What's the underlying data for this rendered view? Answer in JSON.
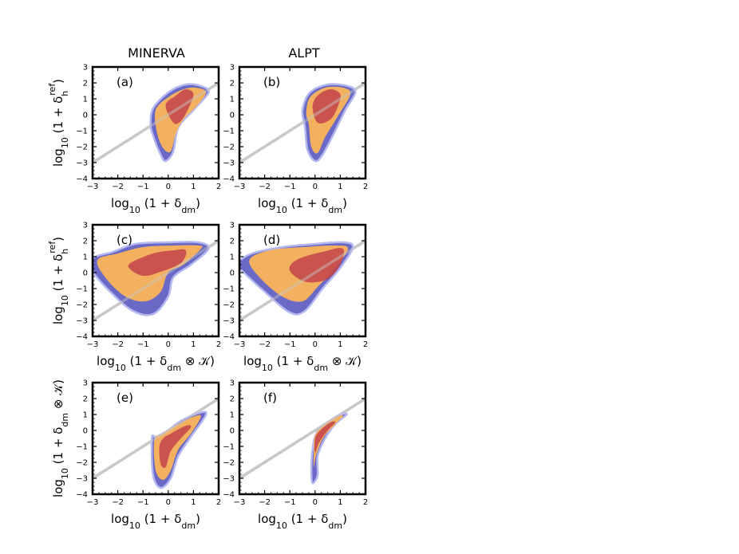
{
  "column_titles": [
    "MINERVA",
    "ALPT"
  ],
  "colors": {
    "outer": "#5a5ac0",
    "outer_edge": "#b4b8f0",
    "mid": "#fbb45a",
    "inner": "#c2444a",
    "diagonal": "#c8c8c8"
  },
  "chart_data": [
    {
      "type": "contour",
      "panel": "(a)",
      "xlabel": "log₁₀ (1 + δdm)",
      "ylabel": "log₁₀ (1 + δhref)",
      "xlim": [
        -3,
        2
      ],
      "ylim": [
        -4,
        3
      ],
      "xticks": [
        "−3",
        "−2",
        "−1",
        "0",
        "1",
        "2"
      ],
      "yticks": [
        "−4",
        "−3",
        "−2",
        "−1",
        "0",
        "1",
        "2",
        "3"
      ],
      "diagonal": true,
      "levels": {
        "outer": [
          [
            -0.6,
            -1.3
          ],
          [
            -0.3,
            -2.5
          ],
          [
            -0.1,
            -2.9
          ],
          [
            0.2,
            -2.3
          ],
          [
            0.4,
            -0.8
          ],
          [
            1.0,
            0.3
          ],
          [
            1.6,
            1.4
          ],
          [
            1.3,
            1.8
          ],
          [
            0.7,
            1.9
          ],
          [
            0.0,
            1.4
          ],
          [
            -0.6,
            0.4
          ],
          [
            -0.7,
            -0.6
          ]
        ],
        "mid": [
          [
            -0.45,
            -1.1
          ],
          [
            -0.2,
            -2.1
          ],
          [
            0.1,
            -2.3
          ],
          [
            0.3,
            -1.2
          ],
          [
            0.6,
            -0.3
          ],
          [
            1.1,
            0.5
          ],
          [
            1.5,
            1.4
          ],
          [
            1.1,
            1.7
          ],
          [
            0.6,
            1.6
          ],
          [
            0.0,
            1.1
          ],
          [
            -0.5,
            0.3
          ]
        ],
        "inner": [
          [
            -0.1,
            0.6
          ],
          [
            0.2,
            -0.5
          ],
          [
            0.5,
            -0.4
          ],
          [
            0.8,
            0.4
          ],
          [
            1.0,
            1.3
          ],
          [
            0.7,
            1.6
          ],
          [
            0.3,
            1.2
          ]
        ]
      }
    },
    {
      "type": "contour",
      "panel": "(b)",
      "xlabel": "log₁₀ (1 + δdm)",
      "ylabel": "",
      "xlim": [
        -3,
        2
      ],
      "ylim": [
        -4,
        3
      ],
      "xticks": [
        "−3",
        "−2",
        "−1",
        "0",
        "1",
        "2"
      ],
      "yticks": [
        "−4",
        "−3",
        "−2",
        "−1",
        "0",
        "1",
        "2",
        "3"
      ],
      "diagonal": true,
      "levels": {
        "outer": [
          [
            -0.4,
            -0.8
          ],
          [
            -0.3,
            -2.2
          ],
          [
            0.0,
            -2.9
          ],
          [
            0.3,
            -2.5
          ],
          [
            0.8,
            -1.0
          ],
          [
            1.2,
            0.3
          ],
          [
            1.6,
            1.4
          ],
          [
            1.3,
            1.8
          ],
          [
            0.5,
            1.9
          ],
          [
            -0.2,
            1.4
          ],
          [
            -0.5,
            0.3
          ]
        ],
        "mid": [
          [
            -0.25,
            -0.6
          ],
          [
            -0.15,
            -2.0
          ],
          [
            0.1,
            -2.4
          ],
          [
            0.4,
            -1.4
          ],
          [
            0.9,
            -0.1
          ],
          [
            1.4,
            1.3
          ],
          [
            1.1,
            1.7
          ],
          [
            0.4,
            1.7
          ],
          [
            -0.2,
            1.1
          ],
          [
            -0.35,
            0.1
          ]
        ],
        "inner": [
          [
            -0.1,
            0.5
          ],
          [
            0.1,
            -0.5
          ],
          [
            0.6,
            -0.3
          ],
          [
            0.9,
            0.5
          ],
          [
            1.0,
            1.3
          ],
          [
            0.6,
            1.6
          ],
          [
            0.1,
            1.2
          ]
        ]
      }
    },
    {
      "type": "contour",
      "panel": "(c)",
      "xlabel": "log₁₀ (1 + δdm ⊗ 𝒦)",
      "ylabel": "log₁₀ (1 + δhref)",
      "xlim": [
        -3,
        2
      ],
      "ylim": [
        -4,
        3
      ],
      "xticks": [
        "−3",
        "−2",
        "−1",
        "0",
        "1",
        "2"
      ],
      "yticks": [
        "−4",
        "−3",
        "−2",
        "−1",
        "0",
        "1",
        "2",
        "3"
      ],
      "diagonal": true,
      "levels": {
        "outer": [
          [
            -3.0,
            0.9
          ],
          [
            -2.2,
            1.3
          ],
          [
            -1.3,
            1.8
          ],
          [
            0.0,
            1.9
          ],
          [
            1.2,
            1.9
          ],
          [
            1.6,
            1.5
          ],
          [
            0.9,
            0.5
          ],
          [
            0.2,
            -0.3
          ],
          [
            0.0,
            -1.5
          ],
          [
            -0.6,
            -2.6
          ],
          [
            -1.4,
            -2.4
          ],
          [
            -2.3,
            -1.2
          ],
          [
            -3.0,
            0.1
          ]
        ],
        "mid": [
          [
            -2.8,
            0.8
          ],
          [
            -2.0,
            1.2
          ],
          [
            -1.0,
            1.6
          ],
          [
            0.2,
            1.7
          ],
          [
            1.2,
            1.7
          ],
          [
            1.3,
            1.5
          ],
          [
            0.6,
            0.5
          ],
          [
            0.0,
            0.0
          ],
          [
            -0.3,
            -1.2
          ],
          [
            -0.9,
            -1.8
          ],
          [
            -1.7,
            -1.5
          ],
          [
            -2.5,
            -0.3
          ]
        ],
        "inner": [
          [
            -1.5,
            0.6
          ],
          [
            -0.6,
            1.2
          ],
          [
            0.2,
            1.4
          ],
          [
            0.7,
            1.4
          ],
          [
            0.5,
            0.6
          ],
          [
            -0.4,
            0.0
          ],
          [
            -1.0,
            -0.2
          ],
          [
            -1.5,
            0.2
          ]
        ]
      }
    },
    {
      "type": "contour",
      "panel": "(d)",
      "xlabel": "log₁₀ (1 + δdm ⊗ 𝒦)",
      "ylabel": "",
      "xlim": [
        -3,
        2
      ],
      "ylim": [
        -4,
        3
      ],
      "xticks": [
        "−3",
        "−2",
        "−1",
        "0",
        "1",
        "2"
      ],
      "yticks": [
        "−4",
        "−3",
        "−2",
        "−1",
        "0",
        "1",
        "2",
        "3"
      ],
      "diagonal": true,
      "levels": {
        "outer": [
          [
            -3.0,
            0.7
          ],
          [
            -2.5,
            1.2
          ],
          [
            -1.3,
            1.6
          ],
          [
            0.0,
            1.8
          ],
          [
            1.1,
            1.9
          ],
          [
            1.5,
            1.6
          ],
          [
            1.0,
            0.3
          ],
          [
            0.3,
            -1.0
          ],
          [
            -0.4,
            -2.4
          ],
          [
            -1.0,
            -2.5
          ],
          [
            -2.0,
            -1.2
          ],
          [
            -3.0,
            0.3
          ]
        ],
        "mid": [
          [
            -2.6,
            0.8
          ],
          [
            -1.8,
            1.4
          ],
          [
            -0.5,
            1.6
          ],
          [
            0.8,
            1.7
          ],
          [
            1.3,
            1.5
          ],
          [
            0.8,
            0.3
          ],
          [
            0.1,
            -0.9
          ],
          [
            -0.5,
            -1.8
          ],
          [
            -1.3,
            -1.5
          ],
          [
            -2.2,
            -0.3
          ]
        ],
        "inner": [
          [
            -1.0,
            0.4
          ],
          [
            -0.6,
            0.9
          ],
          [
            0.3,
            1.3
          ],
          [
            1.1,
            1.5
          ],
          [
            1.0,
            0.5
          ],
          [
            0.5,
            -0.4
          ],
          [
            -0.3,
            -0.6
          ],
          [
            -0.9,
            -0.1
          ]
        ]
      }
    },
    {
      "type": "contour",
      "panel": "(e)",
      "xlabel": "log₁₀ (1 + δdm)",
      "ylabel": "log₁₀ (1 + δdm ⊗ 𝒦)",
      "xlim": [
        -3,
        2
      ],
      "ylim": [
        -4,
        3
      ],
      "xticks": [
        "−3",
        "−2",
        "−1",
        "0",
        "1",
        "2"
      ],
      "yticks": [
        "−4",
        "−3",
        "−2",
        "−1",
        "0",
        "1",
        "2",
        "3"
      ],
      "diagonal": true,
      "levels": {
        "outer": [
          [
            -0.65,
            -0.5
          ],
          [
            -0.6,
            -2.8
          ],
          [
            -0.3,
            -3.6
          ],
          [
            0.1,
            -3.0
          ],
          [
            0.4,
            -1.6
          ],
          [
            0.9,
            -0.4
          ],
          [
            1.5,
            1.0
          ],
          [
            1.2,
            1.1
          ],
          [
            0.5,
            0.6
          ],
          [
            -0.1,
            -0.1
          ],
          [
            -0.5,
            -0.4
          ]
        ],
        "mid": [
          [
            -0.55,
            -0.6
          ],
          [
            -0.5,
            -2.5
          ],
          [
            -0.2,
            -3.1
          ],
          [
            0.1,
            -2.5
          ],
          [
            0.4,
            -1.2
          ],
          [
            0.9,
            -0.2
          ],
          [
            1.3,
            0.9
          ],
          [
            0.9,
            0.8
          ],
          [
            0.3,
            0.3
          ],
          [
            -0.2,
            -0.2
          ]
        ],
        "inner": [
          [
            -0.35,
            -1.0
          ],
          [
            -0.3,
            -2.1
          ],
          [
            -0.1,
            -2.3
          ],
          [
            0.1,
            -1.3
          ],
          [
            0.5,
            -0.5
          ],
          [
            0.9,
            0.2
          ],
          [
            0.7,
            0.3
          ],
          [
            0.1,
            -0.2
          ],
          [
            -0.2,
            -0.5
          ]
        ]
      }
    },
    {
      "type": "contour",
      "panel": "(f)",
      "xlabel": "log₁₀ (1 + δdm)",
      "ylabel": "",
      "xlim": [
        -3,
        2
      ],
      "ylim": [
        -4,
        3
      ],
      "xticks": [
        "−3",
        "−2",
        "−1",
        "0",
        "1",
        "2"
      ],
      "yticks": [
        "−4",
        "−3",
        "−2",
        "−1",
        "0",
        "1",
        "2",
        "3"
      ],
      "diagonal": true,
      "levels": {
        "outer": [
          [
            -0.1,
            -3.3
          ],
          [
            0.1,
            -2.8
          ],
          [
            0.1,
            -1.6
          ],
          [
            0.4,
            -0.5
          ],
          [
            0.8,
            0.4
          ],
          [
            1.25,
            1.0
          ],
          [
            1.0,
            1.0
          ],
          [
            0.5,
            0.5
          ],
          [
            0.05,
            -0.2
          ],
          [
            -0.1,
            -1.2
          ],
          [
            -0.15,
            -2.5
          ]
        ],
        "mid": [
          [
            -0.05,
            -2.3
          ],
          [
            0.05,
            -1.5
          ],
          [
            0.35,
            -0.4
          ],
          [
            0.75,
            0.3
          ],
          [
            1.1,
            0.9
          ],
          [
            0.9,
            0.9
          ],
          [
            0.4,
            0.4
          ],
          [
            0.0,
            -0.3
          ],
          [
            -0.05,
            -1.3
          ]
        ],
        "inner": [
          [
            0.0,
            -1.4
          ],
          [
            0.15,
            -0.8
          ],
          [
            0.45,
            -0.1
          ],
          [
            0.8,
            0.5
          ],
          [
            0.6,
            0.5
          ],
          [
            0.2,
            0.0
          ],
          [
            0.0,
            -0.5
          ]
        ]
      }
    }
  ]
}
